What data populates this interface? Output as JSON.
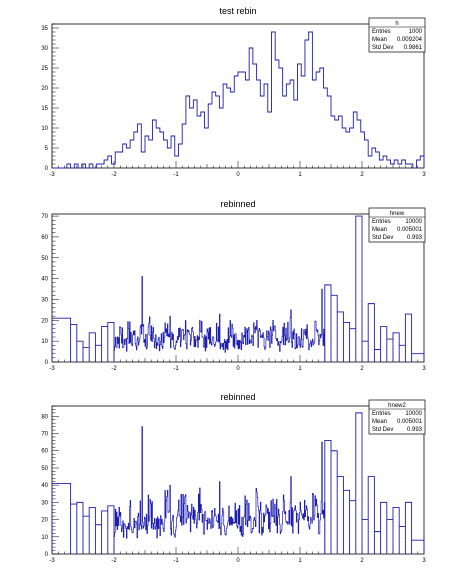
{
  "chart_data": [
    {
      "type": "histogram",
      "title": "test rebin",
      "xlim": [
        -3,
        3
      ],
      "ylim": [
        0,
        36
      ],
      "xticks": [
        "-3",
        "-2",
        "-1",
        "0",
        "1",
        "2",
        "3"
      ],
      "yticks": [
        "0",
        "5",
        "10",
        "15",
        "20",
        "25",
        "30",
        "35"
      ],
      "series_color": "#1f1fae",
      "stats": {
        "name": "h",
        "rows": [
          {
            "label": "Entries",
            "value": "1000"
          },
          {
            "label": "Mean",
            "value": "0.009204"
          },
          {
            "label": "Std Dev",
            "value": "0.9861"
          }
        ]
      },
      "bins": {
        "edges_start": -3.0,
        "bin_width": 0.06,
        "counts": [
          0,
          0,
          0,
          0,
          1,
          0,
          1,
          0,
          1,
          0,
          1,
          0,
          1,
          1,
          2,
          3,
          1,
          4,
          4,
          6,
          5,
          7,
          9,
          11,
          4,
          8,
          7,
          12,
          10,
          9,
          7,
          5,
          8,
          3,
          6,
          11,
          18,
          15,
          17,
          13,
          14,
          10,
          16,
          19,
          18,
          15,
          21,
          20,
          19,
          23,
          24,
          24,
          22,
          30,
          26,
          22,
          18,
          21,
          14,
          34,
          27,
          25,
          18,
          21,
          22,
          17,
          26,
          23,
          32,
          34,
          22,
          24,
          25,
          20,
          18,
          13,
          12,
          13,
          10,
          9,
          10,
          14,
          12,
          9,
          7,
          3,
          5,
          4,
          2,
          3,
          2,
          1,
          2,
          1,
          2,
          1,
          1,
          0,
          2,
          3
        ]
      }
    },
    {
      "type": "histogram",
      "title": "rebinned",
      "xlim": [
        -3,
        3
      ],
      "ylim": [
        0,
        71
      ],
      "xticks": [
        "-3",
        "-2",
        "-1",
        "0",
        "1",
        "2",
        "3"
      ],
      "yticks": [
        "0",
        "10",
        "20",
        "30",
        "40",
        "50",
        "60",
        "70"
      ],
      "series_color": "#1f1fae",
      "stats": {
        "name": "hnew",
        "rows": [
          {
            "label": "Entries",
            "value": "10000"
          },
          {
            "label": "Mean",
            "value": "0.005001"
          },
          {
            "label": "Std Dev",
            "value": "0.993"
          }
        ]
      },
      "bins": {
        "left_edges": [
          -3.0,
          -2.7,
          -2.6,
          -2.5,
          -2.4,
          -2.3,
          -2.2,
          -2.1,
          -2.0,
          -1.9,
          -1.8,
          -1.7,
          -1.6,
          -1.5,
          -1.4,
          1.4,
          1.5,
          1.6,
          1.7,
          1.8,
          1.9,
          2.0,
          2.1,
          2.2,
          2.3,
          2.4,
          2.5,
          2.6,
          2.7,
          2.8
        ],
        "right_edge": 3.0,
        "counts": [
          21,
          18,
          10,
          7,
          14,
          8,
          17,
          19,
          11,
          12,
          20,
          17,
          16,
          13,
          15,
          37,
          32,
          24,
          19,
          16,
          70,
          10,
          28,
          6,
          17,
          11,
          14,
          8,
          23,
          4
        ],
        "dense_range": [
          -2.0,
          1.4
        ],
        "dense_levels": [
          10,
          12,
          8,
          14,
          11,
          9,
          13,
          10,
          15,
          12,
          9,
          11,
          16,
          10,
          8,
          13,
          14,
          11,
          12,
          10,
          17,
          9,
          12,
          11,
          13,
          10,
          8,
          14,
          12,
          11,
          10,
          13,
          9,
          15,
          12,
          10,
          11,
          14,
          12,
          9,
          13,
          16,
          11,
          10,
          12,
          13,
          9,
          14,
          11,
          12
        ],
        "spikes": [
          {
            "x": -2.1,
            "y": 28
          },
          {
            "x": -1.55,
            "y": 41
          },
          {
            "x": -1.1,
            "y": 22
          },
          {
            "x": -0.3,
            "y": 23
          },
          {
            "x": 0.3,
            "y": 20
          },
          {
            "x": 0.85,
            "y": 25
          },
          {
            "x": 1.35,
            "y": 35
          },
          {
            "x": 1.45,
            "y": 33
          }
        ]
      }
    },
    {
      "type": "histogram",
      "title": "rebinned",
      "xlim": [
        -3,
        3
      ],
      "ylim": [
        0,
        86
      ],
      "xticks": [
        "-3",
        "-2",
        "-1",
        "0",
        "1",
        "2",
        "3"
      ],
      "yticks": [
        "0",
        "10",
        "20",
        "30",
        "40",
        "50",
        "60",
        "70",
        "80"
      ],
      "series_color": "#1f1fae",
      "stats": {
        "name": "hnew2",
        "rows": [
          {
            "label": "Entries",
            "value": "10000"
          },
          {
            "label": "Mean",
            "value": "0.005001"
          },
          {
            "label": "Std Dev",
            "value": "0.993"
          }
        ]
      },
      "bins": {
        "left_edges": [
          -3.0,
          -2.7,
          -2.6,
          -2.5,
          -2.4,
          -2.3,
          -2.2,
          -2.1,
          -2.0,
          -1.9,
          -1.8,
          -1.7,
          -1.6,
          -1.5,
          -1.4,
          1.4,
          1.5,
          1.6,
          1.7,
          1.8,
          1.9,
          2.0,
          2.1,
          2.2,
          2.3,
          2.4,
          2.5,
          2.6,
          2.7,
          2.8
        ],
        "right_edge": 3.0,
        "counts": [
          41,
          29,
          30,
          22,
          27,
          17,
          25,
          28,
          21,
          23,
          33,
          29,
          28,
          20,
          27,
          66,
          60,
          45,
          37,
          31,
          82,
          20,
          45,
          13,
          30,
          20,
          27,
          16,
          30,
          8
        ],
        "dense_range": [
          -2.0,
          1.4
        ],
        "dense_levels": [
          18,
          22,
          16,
          25,
          20,
          17,
          23,
          19,
          27,
          21,
          16,
          20,
          29,
          18,
          15,
          24,
          26,
          20,
          22,
          18,
          30,
          17,
          22,
          20,
          24,
          19,
          15,
          25,
          22,
          20,
          18,
          24,
          17,
          27,
          21,
          19,
          20,
          26,
          22,
          17,
          24,
          28,
          20,
          18,
          22,
          24,
          17,
          25,
          20,
          22
        ],
        "spikes": [
          {
            "x": -2.1,
            "y": 49
          },
          {
            "x": -1.55,
            "y": 74
          },
          {
            "x": -1.1,
            "y": 40
          },
          {
            "x": -0.3,
            "y": 42
          },
          {
            "x": 0.3,
            "y": 36
          },
          {
            "x": 0.85,
            "y": 45
          },
          {
            "x": 1.35,
            "y": 65
          },
          {
            "x": 1.45,
            "y": 72
          }
        ]
      }
    }
  ]
}
